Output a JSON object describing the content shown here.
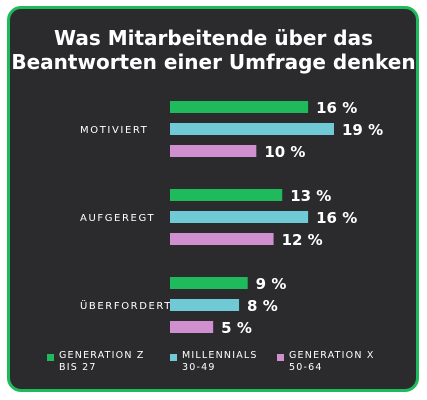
{
  "chart_data": {
    "type": "bar",
    "title_lines": [
      "Was Mitarbeitende über das",
      "Beantworten einer Umfrage denken"
    ],
    "categories": [
      "MOTIVIERT",
      "AUFGEREGT",
      "ÜBERFORDERT"
    ],
    "series": [
      {
        "name_lines": [
          "GENERATION Z",
          "BIS 27"
        ],
        "color": "#1fba5c",
        "values": [
          16,
          13,
          9
        ]
      },
      {
        "name_lines": [
          "MILLENNIALS",
          "30-49"
        ],
        "color": "#6fcad6",
        "values": [
          19,
          16,
          8
        ]
      },
      {
        "name_lines": [
          "GENERATION X",
          "50-64"
        ],
        "color": "#d08fcf",
        "values": [
          10,
          12,
          5
        ]
      }
    ],
    "value_suffix": " %",
    "xlim": [
      0,
      19
    ],
    "legend_position": "bottom",
    "background": "#2b2b2e",
    "border_color": "#1fba5c"
  }
}
